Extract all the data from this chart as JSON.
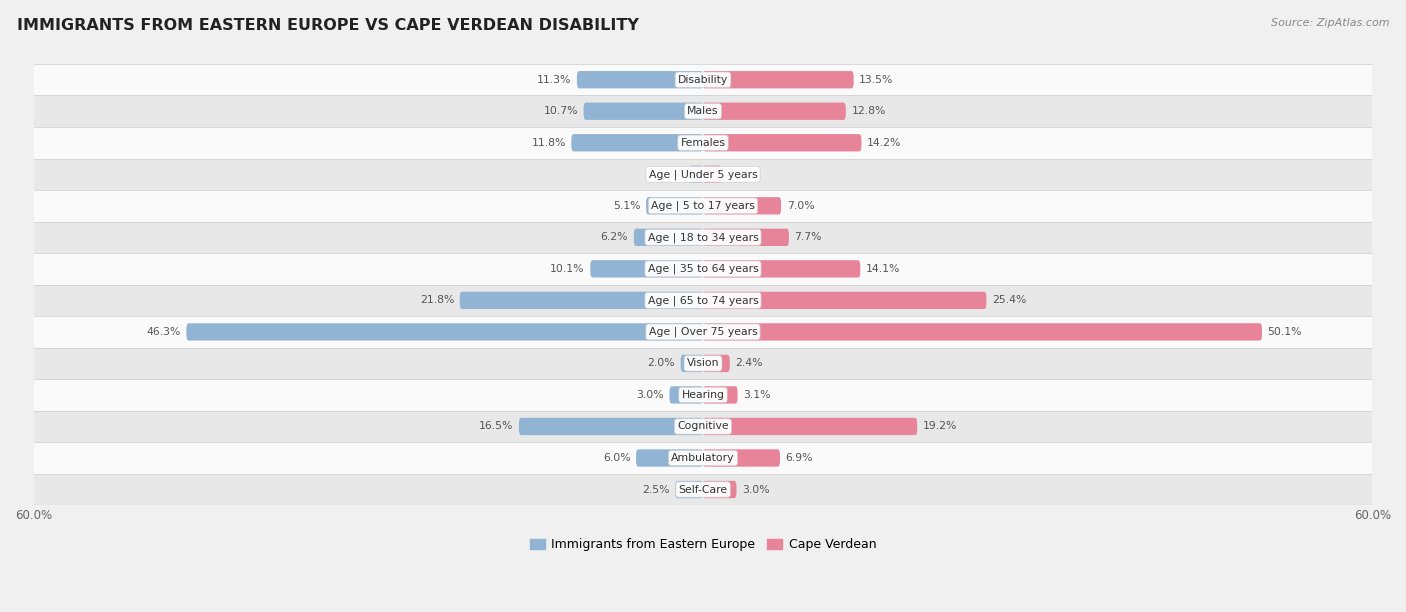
{
  "title": "IMMIGRANTS FROM EASTERN EUROPE VS CAPE VERDEAN DISABILITY",
  "source": "Source: ZipAtlas.com",
  "categories": [
    "Disability",
    "Males",
    "Females",
    "Age | Under 5 years",
    "Age | 5 to 17 years",
    "Age | 18 to 34 years",
    "Age | 35 to 64 years",
    "Age | 65 to 74 years",
    "Age | Over 75 years",
    "Vision",
    "Hearing",
    "Cognitive",
    "Ambulatory",
    "Self-Care"
  ],
  "eastern_europe": [
    11.3,
    10.7,
    11.8,
    1.2,
    5.1,
    6.2,
    10.1,
    21.8,
    46.3,
    2.0,
    3.0,
    16.5,
    6.0,
    2.5
  ],
  "cape_verdean": [
    13.5,
    12.8,
    14.2,
    1.7,
    7.0,
    7.7,
    14.1,
    25.4,
    50.1,
    2.4,
    3.1,
    19.2,
    6.9,
    3.0
  ],
  "max_val": 60.0,
  "color_eastern": "#92b4d4",
  "color_cape": "#e8849a",
  "color_eastern_dark": "#5a8ab8",
  "color_cape_dark": "#d45a78",
  "bg_color": "#f0f0f0",
  "row_bg_light": "#fafafa",
  "row_bg_dark": "#e8e8e8",
  "legend_eastern": "Immigrants from Eastern Europe",
  "legend_cape": "Cape Verdean",
  "bar_height": 0.55,
  "label_fontsize": 7.8,
  "value_fontsize": 7.8,
  "title_fontsize": 11.5
}
